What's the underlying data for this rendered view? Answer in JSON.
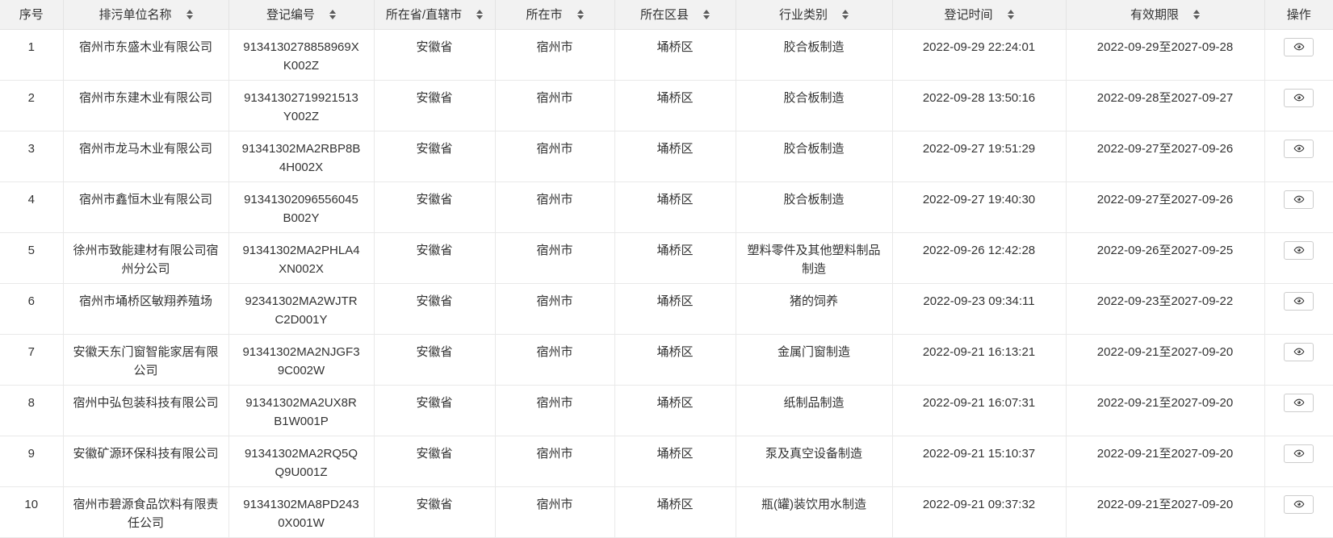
{
  "colors": {
    "header_background": "#f2f2f2",
    "row_background": "#ffffff",
    "border": "#e9e9e9",
    "text": "#333333",
    "sort_arrow": "#5b5b5b"
  },
  "table": {
    "action_icon": "eye-icon",
    "columns": [
      {
        "key": "index",
        "label": "序号",
        "sortable": false
      },
      {
        "key": "name",
        "label": "排污单位名称",
        "sortable": true
      },
      {
        "key": "reg_no",
        "label": "登记编号",
        "sortable": true
      },
      {
        "key": "province",
        "label": "所在省/直辖市",
        "sortable": true
      },
      {
        "key": "city",
        "label": "所在市",
        "sortable": true
      },
      {
        "key": "district",
        "label": "所在区县",
        "sortable": true
      },
      {
        "key": "industry",
        "label": "行业类别",
        "sortable": true
      },
      {
        "key": "reg_time",
        "label": "登记时间",
        "sortable": true
      },
      {
        "key": "validity",
        "label": "有效期限",
        "sortable": true
      },
      {
        "key": "action",
        "label": "操作",
        "sortable": false
      }
    ],
    "rows": [
      {
        "index": "1",
        "name": "宿州市东盛木业有限公司",
        "reg_no": "9134130278858969XK002Z",
        "province": "安徽省",
        "city": "宿州市",
        "district": "埇桥区",
        "industry": "胶合板制造",
        "reg_time": "2022-09-29 22:24:01",
        "validity": "2022-09-29至2027-09-28"
      },
      {
        "index": "2",
        "name": "宿州市东建木业有限公司",
        "reg_no": "91341302719921513Y002Z",
        "province": "安徽省",
        "city": "宿州市",
        "district": "埇桥区",
        "industry": "胶合板制造",
        "reg_time": "2022-09-28 13:50:16",
        "validity": "2022-09-28至2027-09-27"
      },
      {
        "index": "3",
        "name": "宿州市龙马木业有限公司",
        "reg_no": "91341302MA2RBP8B4H002X",
        "province": "安徽省",
        "city": "宿州市",
        "district": "埇桥区",
        "industry": "胶合板制造",
        "reg_time": "2022-09-27 19:51:29",
        "validity": "2022-09-27至2027-09-26"
      },
      {
        "index": "4",
        "name": "宿州市鑫恒木业有限公司",
        "reg_no": "91341302096556045B002Y",
        "province": "安徽省",
        "city": "宿州市",
        "district": "埇桥区",
        "industry": "胶合板制造",
        "reg_time": "2022-09-27 19:40:30",
        "validity": "2022-09-27至2027-09-26"
      },
      {
        "index": "5",
        "name": "徐州市致能建材有限公司宿州分公司",
        "reg_no": "91341302MA2PHLA4XN002X",
        "province": "安徽省",
        "city": "宿州市",
        "district": "埇桥区",
        "industry": "塑料零件及其他塑料制品制造",
        "reg_time": "2022-09-26 12:42:28",
        "validity": "2022-09-26至2027-09-25"
      },
      {
        "index": "6",
        "name": "宿州市埇桥区敏翔养殖场",
        "reg_no": "92341302MA2WJTRC2D001Y",
        "province": "安徽省",
        "city": "宿州市",
        "district": "埇桥区",
        "industry": "猪的饲养",
        "reg_time": "2022-09-23 09:34:11",
        "validity": "2022-09-23至2027-09-22"
      },
      {
        "index": "7",
        "name": "安徽天东门窗智能家居有限公司",
        "reg_no": "91341302MA2NJGF39C002W",
        "province": "安徽省",
        "city": "宿州市",
        "district": "埇桥区",
        "industry": "金属门窗制造",
        "reg_time": "2022-09-21 16:13:21",
        "validity": "2022-09-21至2027-09-20"
      },
      {
        "index": "8",
        "name": "宿州中弘包装科技有限公司",
        "reg_no": "91341302MA2UX8RB1W001P",
        "province": "安徽省",
        "city": "宿州市",
        "district": "埇桥区",
        "industry": "纸制品制造",
        "reg_time": "2022-09-21 16:07:31",
        "validity": "2022-09-21至2027-09-20"
      },
      {
        "index": "9",
        "name": "安徽矿源环保科技有限公司",
        "reg_no": "91341302MA2RQ5QQ9U001Z",
        "province": "安徽省",
        "city": "宿州市",
        "district": "埇桥区",
        "industry": "泵及真空设备制造",
        "reg_time": "2022-09-21 15:10:37",
        "validity": "2022-09-21至2027-09-20"
      },
      {
        "index": "10",
        "name": "宿州市碧源食品饮料有限责任公司",
        "reg_no": "91341302MA8PD2430X001W",
        "province": "安徽省",
        "city": "宿州市",
        "district": "埇桥区",
        "industry": "瓶(罐)装饮用水制造",
        "reg_time": "2022-09-21 09:37:32",
        "validity": "2022-09-21至2027-09-20"
      }
    ]
  }
}
